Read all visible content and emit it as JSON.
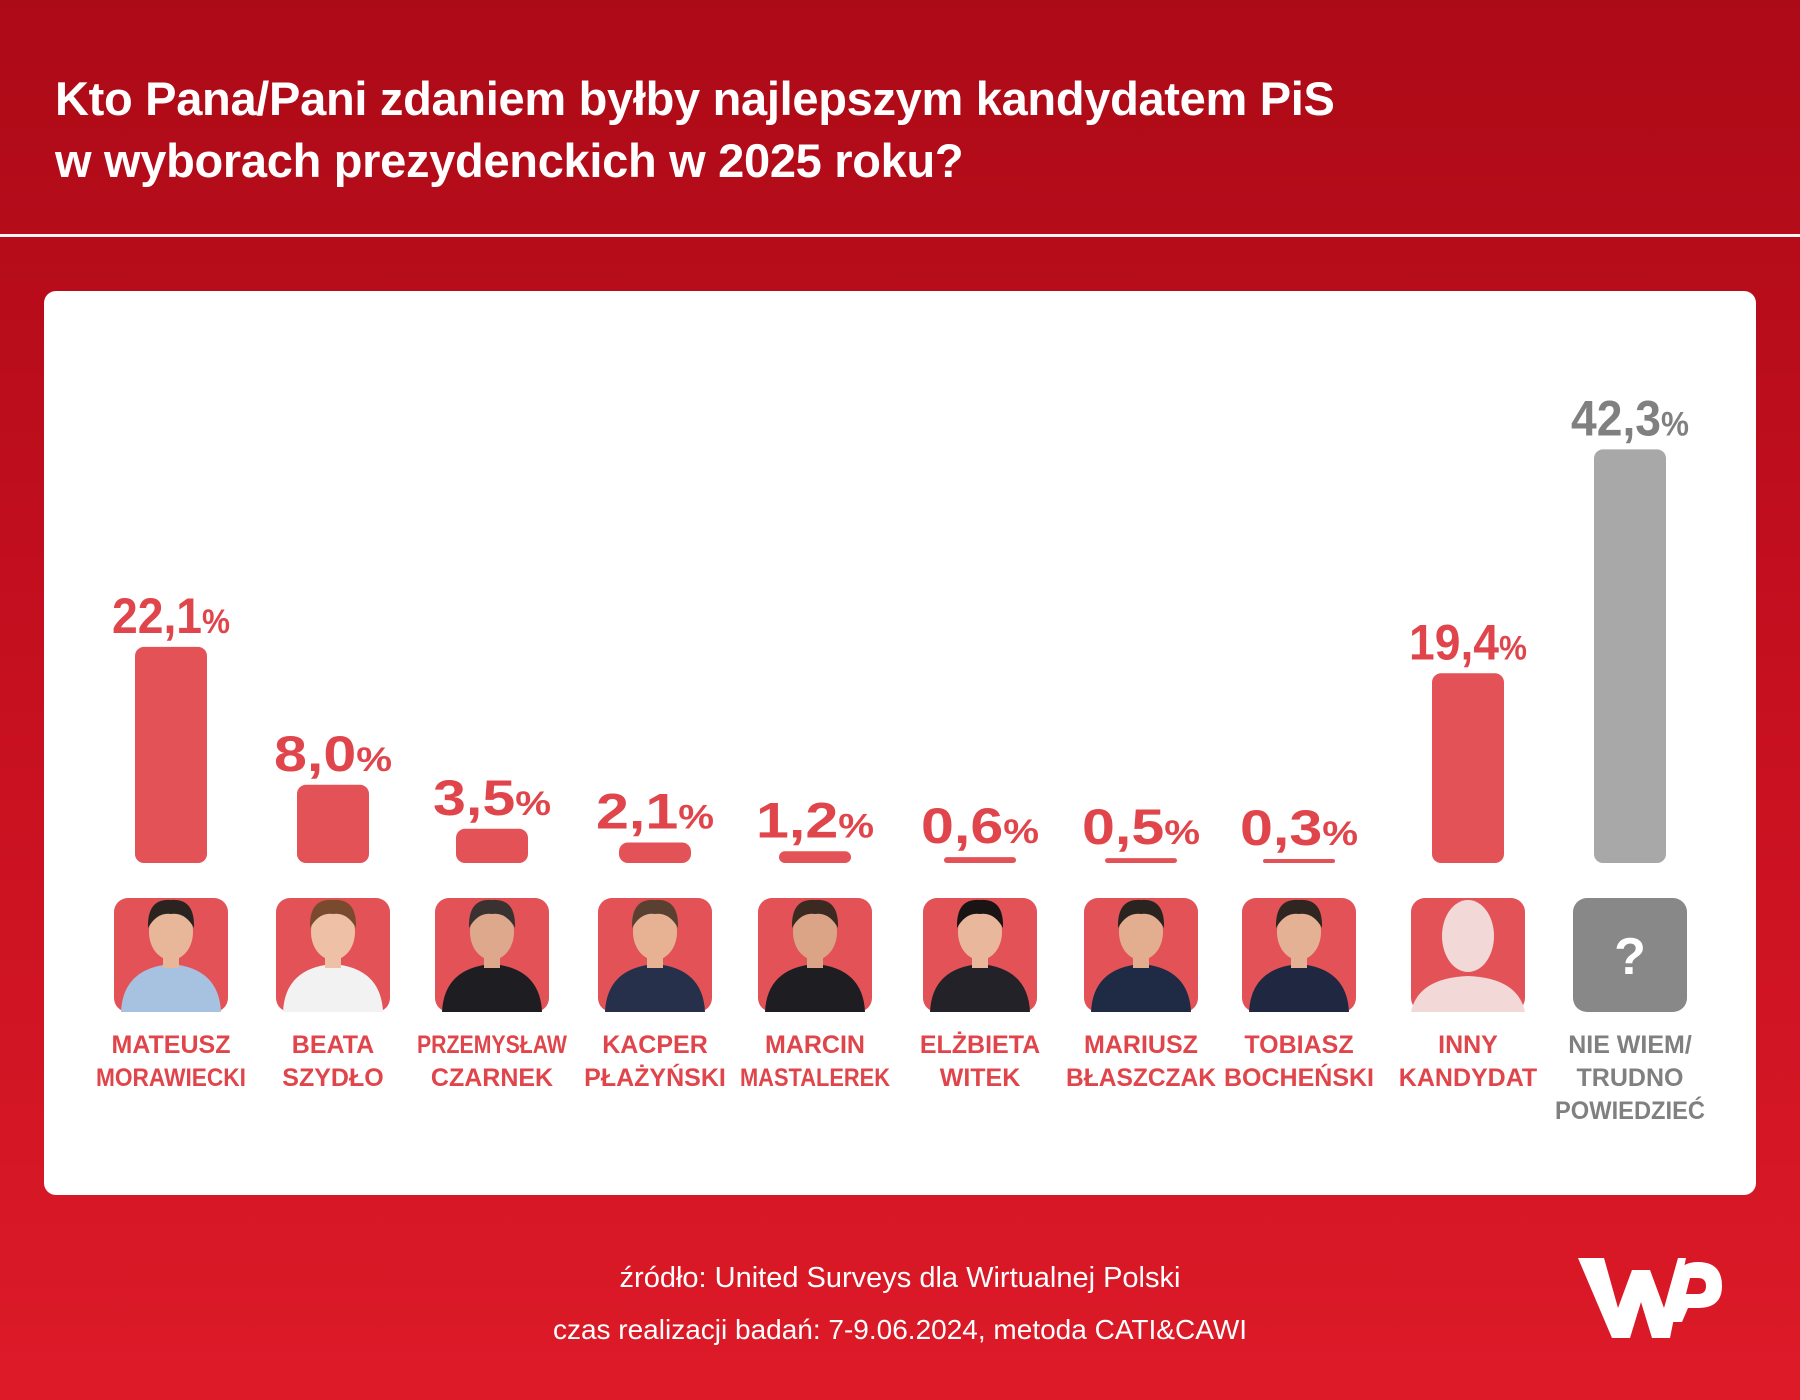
{
  "title": {
    "line1": "Kto Pana/Pani zdaniem byłby najlepszym kandydatem PiS",
    "line2": "w wyborach prezydenckich w 2025 roku?"
  },
  "footer": {
    "source": "źródło: United Surveys dla Wirtualnej Polski",
    "method": "czas realizacji badań: 7-9.06.2024, metoda CATI&CAWI"
  },
  "logo": {
    "name": "wp-logo"
  },
  "colors": {
    "bar_red": "#e35257",
    "bar_grey": "#a8a8a8",
    "label_red": "#e0454b",
    "label_grey": "#808080",
    "photo_bg_red": "#e35257",
    "photo_bg_grey": "#888888",
    "background": "#c40f1f"
  },
  "chart_data": {
    "type": "bar",
    "title": "Kto Pana/Pani zdaniem byłby najlepszym kandydatem PiS w wyborach prezydenckich w 2025 roku?",
    "categories": [
      [
        "MATEUSZ",
        "MORAWIECKI"
      ],
      [
        "BEATA",
        "SZYDŁO"
      ],
      [
        "PRZEMYSŁAW",
        "CZARNEK"
      ],
      [
        "KACPER",
        "PŁAŻYŃSKI"
      ],
      [
        "MARCIN",
        "MASTALEREK"
      ],
      [
        "ELŻBIETA",
        "WITEK"
      ],
      [
        "MARIUSZ",
        "BŁASZCZAK"
      ],
      [
        "TOBIASZ",
        "BOCHEŃSKI"
      ],
      [
        "INNY",
        "KANDYDAT"
      ],
      [
        "NIE WIEM/",
        "TRUDNO",
        "POWIEDZIEĆ"
      ]
    ],
    "values": [
      22.1,
      8.0,
      3.5,
      2.1,
      1.2,
      0.6,
      0.5,
      0.3,
      19.4,
      42.3
    ],
    "value_labels": [
      "22,1",
      "8,0",
      "3,5",
      "2,1",
      "1,2",
      "0,6",
      "0,5",
      "0,3",
      "19,4",
      "42,3"
    ],
    "unit": "%",
    "bar_styles": [
      "red",
      "red",
      "red",
      "red",
      "red",
      "red",
      "red",
      "red",
      "red",
      "grey"
    ],
    "icons": [
      "person-photo",
      "person-photo",
      "person-photo",
      "person-photo",
      "person-photo",
      "person-photo",
      "person-photo",
      "person-photo",
      "silhouette-icon",
      "question-mark-icon"
    ],
    "ylim": [
      0,
      45
    ],
    "grid": false,
    "legend": "none"
  }
}
